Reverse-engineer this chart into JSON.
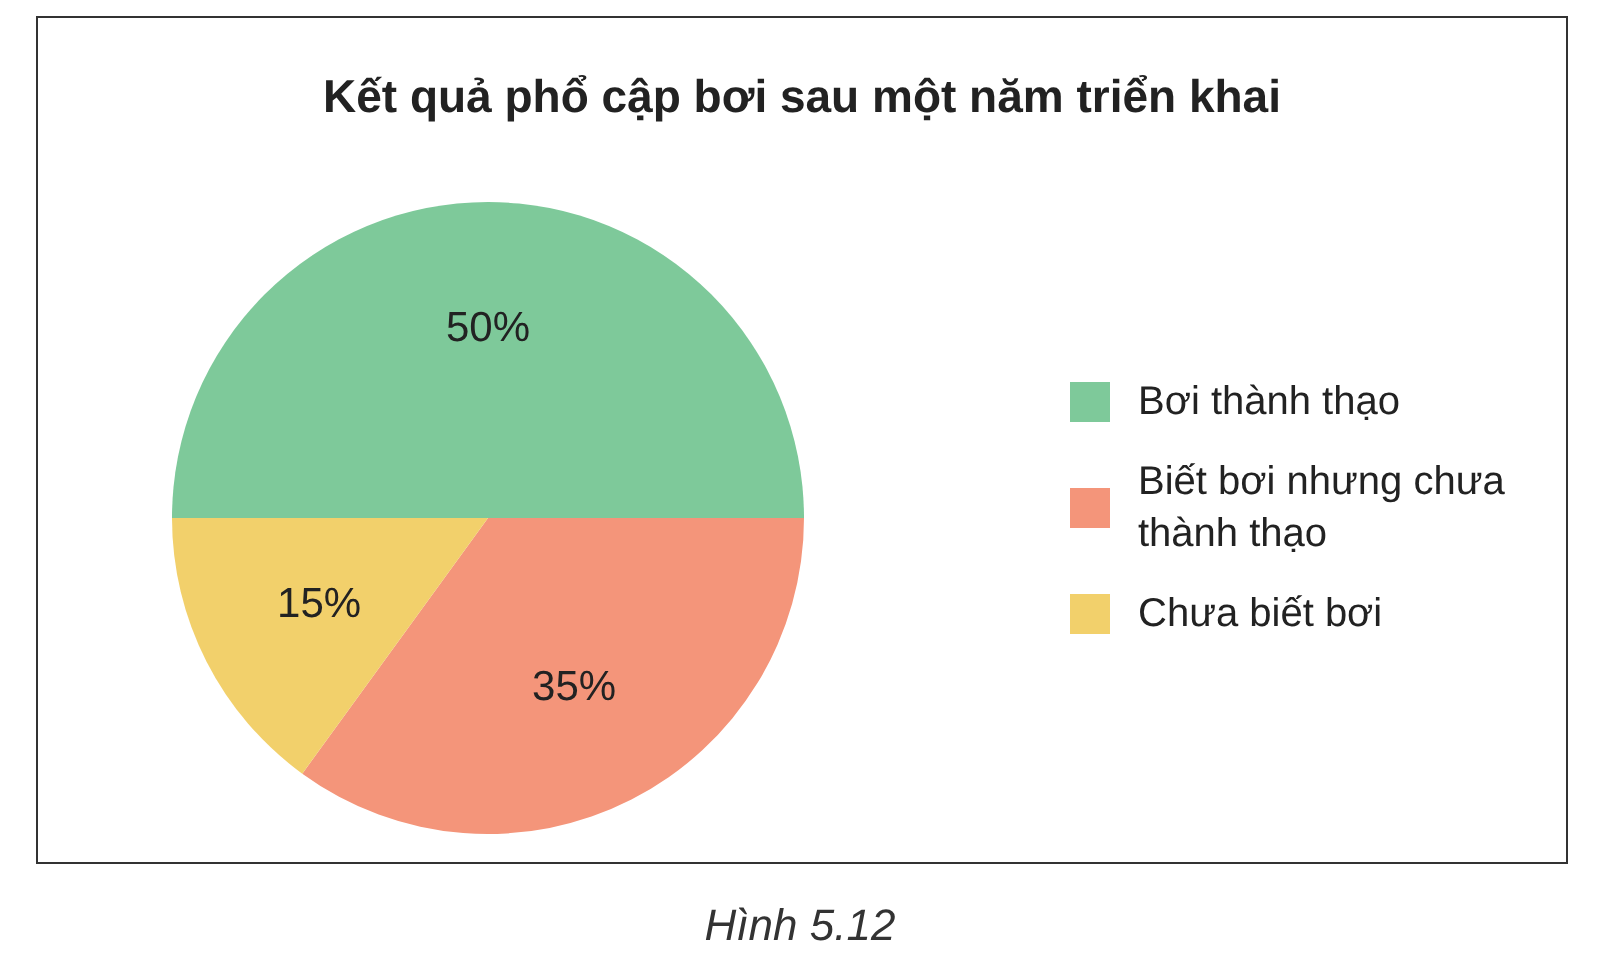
{
  "chart_data": {
    "type": "pie",
    "title": "Kết quả phổ cập bơi sau một năm triển khai",
    "categories": [
      "Bơi thành thạo",
      "Biết bơi nhưng chưa thành thạo",
      "Chưa biết bơi"
    ],
    "values": [
      50,
      35,
      15
    ],
    "colors": [
      "#7ec99a",
      "#f4957a",
      "#f2d06b"
    ],
    "value_labels": [
      "50%",
      "35%",
      "15%"
    ],
    "legend": "right",
    "annotations": [
      "Hình 5.12"
    ]
  }
}
